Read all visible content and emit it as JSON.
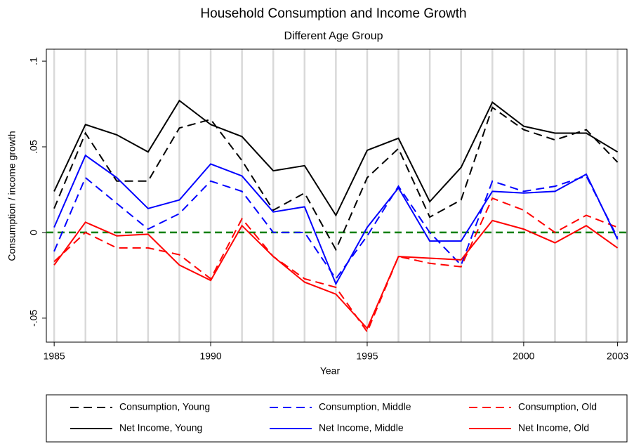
{
  "chart_data": {
    "type": "line",
    "title": "Household Consumption and Income Growth",
    "subtitle": "Different Age Group",
    "xlabel": "Year",
    "ylabel": "Consumption / income growth",
    "x": [
      1985,
      1986,
      1987,
      1988,
      1989,
      1990,
      1991,
      1992,
      1993,
      1994,
      1995,
      1996,
      1997,
      1998,
      1999,
      2000,
      2001,
      2002,
      2003
    ],
    "xlim": [
      1984.75,
      2003.3
    ],
    "ylim": [
      -0.064,
      0.107
    ],
    "xticks": [
      1985,
      1990,
      1995,
      2000,
      2003
    ],
    "yticks": [
      {
        "value": -0.05,
        "label": "-.05"
      },
      0,
      {
        "value": 0.05,
        "label": ".05"
      },
      {
        "value": 0.1,
        "label": ".1"
      }
    ],
    "xgrid": [
      1985,
      1986,
      1987,
      1988,
      1989,
      1990,
      1991,
      1992,
      1993,
      1994,
      1995,
      1996,
      1997,
      1998,
      1999,
      2000,
      2001,
      2002,
      2003
    ],
    "grid_color": "#d9d9d9",
    "yline": 0,
    "yline_color": "#008000",
    "series": [
      {
        "name": "Consumption, Young",
        "color": "#000000",
        "dash": true,
        "values": [
          0.014,
          0.058,
          0.03,
          0.03,
          0.061,
          0.066,
          0.042,
          0.013,
          0.023,
          -0.01,
          0.032,
          0.049,
          0.009,
          0.019,
          0.073,
          0.06,
          0.054,
          0.06,
          0.041
        ]
      },
      {
        "name": "Consumption, Middle",
        "color": "#0000ff",
        "dash": true,
        "values": [
          -0.011,
          0.032,
          0.017,
          0.002,
          0.011,
          0.03,
          0.024,
          0.0,
          0.0,
          -0.027,
          -0.002,
          0.027,
          0.0,
          -0.019,
          0.03,
          0.024,
          0.027,
          0.033,
          -0.003
        ]
      },
      {
        "name": "Consumption, Old",
        "color": "#ff0000",
        "dash": true,
        "values": [
          -0.017,
          0.0,
          -0.009,
          -0.009,
          -0.013,
          -0.027,
          0.008,
          -0.014,
          -0.027,
          -0.032,
          -0.058,
          -0.014,
          -0.018,
          -0.02,
          0.02,
          0.013,
          0.0,
          0.01,
          0.003
        ]
      },
      {
        "name": "Net Income, Young",
        "color": "#000000",
        "dash": false,
        "values": [
          0.024,
          0.063,
          0.057,
          0.047,
          0.077,
          0.063,
          0.056,
          0.036,
          0.039,
          0.01,
          0.048,
          0.055,
          0.018,
          0.038,
          0.076,
          0.062,
          0.058,
          0.058,
          0.047
        ]
      },
      {
        "name": "Net Income, Middle",
        "color": "#0000ff",
        "dash": false,
        "values": [
          0.003,
          0.045,
          0.032,
          0.014,
          0.019,
          0.04,
          0.033,
          0.012,
          0.015,
          -0.03,
          0.003,
          0.026,
          -0.005,
          -0.005,
          0.024,
          0.023,
          0.024,
          0.034,
          -0.004
        ]
      },
      {
        "name": "Net Income, Old",
        "color": "#ff0000",
        "dash": false,
        "values": [
          -0.019,
          0.006,
          -0.002,
          -0.001,
          -0.019,
          -0.028,
          0.004,
          -0.014,
          -0.029,
          -0.036,
          -0.056,
          -0.014,
          -0.015,
          -0.016,
          0.007,
          0.002,
          -0.006,
          0.004,
          -0.009
        ]
      }
    ]
  }
}
